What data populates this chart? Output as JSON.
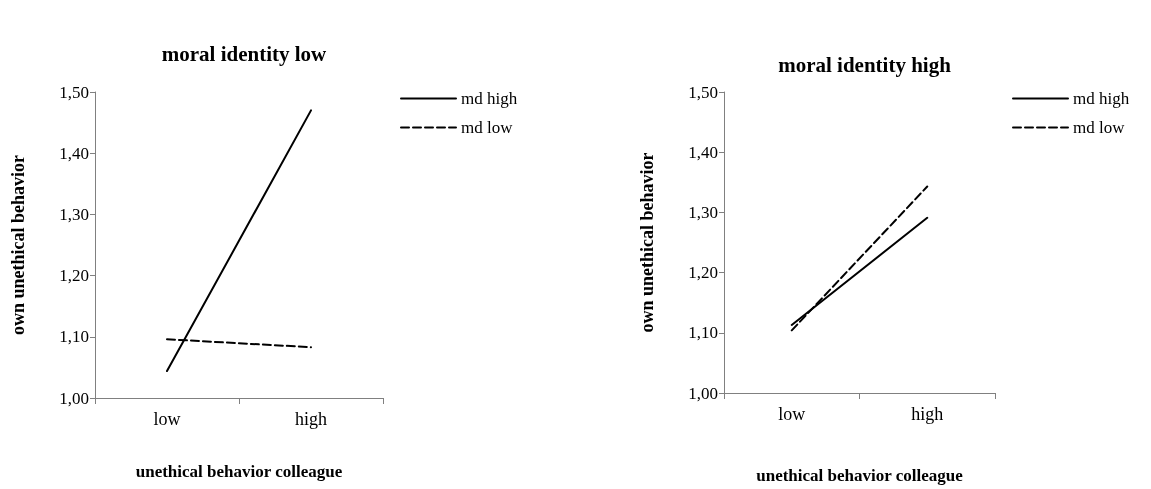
{
  "chart_data": [
    {
      "type": "line",
      "title": "moral identity low",
      "xlabel": "unethical behavior colleague",
      "ylabel": "own unethical behavior",
      "categories": [
        "low",
        "high"
      ],
      "series": [
        {
          "name": "md high",
          "color": "#000000",
          "line_style": "solid",
          "values": [
            1.044,
            1.47
          ]
        },
        {
          "name": "md low",
          "color": "#000000",
          "line_style": "dashed",
          "values": [
            1.096,
            1.083
          ]
        }
      ],
      "ylim": [
        1.0,
        1.5
      ],
      "yticks": [
        {
          "value": 1.0,
          "label": "1,00"
        },
        {
          "value": 1.1,
          "label": "1,10"
        },
        {
          "value": 1.2,
          "label": "1,20"
        },
        {
          "value": 1.3,
          "label": "1,30"
        },
        {
          "value": 1.4,
          "label": "1,40"
        },
        {
          "value": 1.5,
          "label": "1,50"
        }
      ],
      "grid": false,
      "legend": "top right",
      "marker": "none"
    },
    {
      "type": "line",
      "title": "moral identity high",
      "xlabel": "unethical behavior colleague",
      "ylabel": "own unethical behavior",
      "categories": [
        "low",
        "high"
      ],
      "series": [
        {
          "name": "md high",
          "color": "#000000",
          "line_style": "solid",
          "values": [
            1.113,
            1.291
          ]
        },
        {
          "name": "md low",
          "color": "#000000",
          "line_style": "dashed",
          "values": [
            1.104,
            1.343
          ]
        }
      ],
      "ylim": [
        1.0,
        1.5
      ],
      "yticks": [
        {
          "value": 1.0,
          "label": "1,00"
        },
        {
          "value": 1.1,
          "label": "1,10"
        },
        {
          "value": 1.2,
          "label": "1,20"
        },
        {
          "value": 1.3,
          "label": "1,30"
        },
        {
          "value": 1.4,
          "label": "1,40"
        },
        {
          "value": 1.5,
          "label": "1,50"
        }
      ],
      "grid": false,
      "legend": "top right",
      "marker": "none"
    }
  ]
}
